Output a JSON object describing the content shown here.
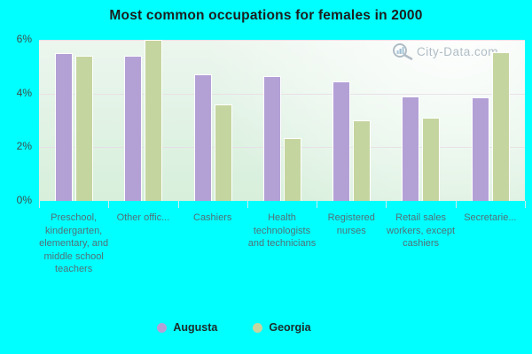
{
  "title": "Most common occupations for females in 2000",
  "watermark": "City-Data.com",
  "colors": {
    "background": "#00ffff",
    "augusta": "#b3a1d6",
    "georgia": "#c5d5a0",
    "bar_border": "#ffffff",
    "gridline": "#e8dce6",
    "watermark_text": "#a4b2bc"
  },
  "legend": {
    "items": [
      {
        "label": "Augusta",
        "color": "#b3a1d6"
      },
      {
        "label": "Georgia",
        "color": "#c5d5a0"
      }
    ]
  },
  "chart_data": {
    "type": "bar",
    "title": "Most common occupations for females in 2000",
    "categories": [
      "Preschool, kindergarten, elementary, and middle school teachers",
      "Other offic...",
      "Cashiers",
      "Health technologists and technicians",
      "Registered nurses",
      "Retail sales workers, except cashiers",
      "Secretarie..."
    ],
    "series": [
      {
        "name": "Augusta",
        "color": "#b3a1d6",
        "values": [
          5.5,
          5.4,
          4.7,
          4.65,
          4.45,
          3.9,
          3.85
        ]
      },
      {
        "name": "Georgia",
        "color": "#c5d5a0",
        "values": [
          5.4,
          6.0,
          3.6,
          2.35,
          3.0,
          3.1,
          5.55
        ]
      }
    ],
    "xlabel": "",
    "ylabel": "",
    "ylim": [
      0,
      6
    ],
    "yticks": [
      {
        "value": 0,
        "label": "0%"
      },
      {
        "value": 2,
        "label": "2%"
      },
      {
        "value": 4,
        "label": "4%"
      },
      {
        "value": 6,
        "label": "6%"
      }
    ],
    "grid": true,
    "legend_position": "bottom"
  }
}
